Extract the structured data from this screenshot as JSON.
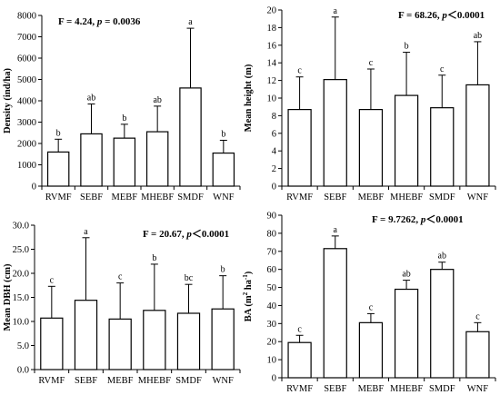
{
  "chart_data": [
    {
      "type": "bar",
      "ylabel": "Density (ind/ha)",
      "stat_text": [
        "F = 4.24, ",
        "p",
        " = 0.0036"
      ],
      "ylim": [
        0,
        8000
      ],
      "yticks": [
        0,
        1000,
        2000,
        3000,
        4000,
        5000,
        6000,
        7000,
        8000
      ],
      "ytick_labels": [
        "0",
        "1000",
        "2000",
        "3000",
        "4000",
        "5000",
        "6000",
        "7000",
        "8000"
      ],
      "categories": [
        "RVMF",
        "SEBF",
        "MEBF",
        "MHEBF",
        "SMDF",
        "WNF"
      ],
      "values": [
        1600,
        2450,
        2250,
        2550,
        4600,
        1550
      ],
      "errors": [
        600,
        1400,
        650,
        1200,
        2800,
        600
      ],
      "letters": [
        "b",
        "ab",
        "b",
        "ab",
        "a",
        "b"
      ]
    },
    {
      "type": "bar",
      "ylabel": "Mean height (m)",
      "stat_text": [
        "F = 68.26, ",
        "p",
        "＜0.0001"
      ],
      "ylim": [
        0,
        20
      ],
      "yticks": [
        0,
        2,
        4,
        6,
        8,
        10,
        12,
        14,
        16,
        18,
        20
      ],
      "ytick_labels": [
        "0",
        "2",
        "4",
        "6",
        "8",
        "10",
        "12",
        "14",
        "16",
        "18",
        "20"
      ],
      "categories": [
        "RVMF",
        "SEBF",
        "MEBF",
        "MHEBF",
        "SMDF",
        "WNF"
      ],
      "values": [
        8.7,
        12.1,
        8.7,
        10.3,
        8.9,
        11.5
      ],
      "errors": [
        3.7,
        7.1,
        4.6,
        4.9,
        3.7,
        4.9
      ],
      "letters": [
        "c",
        "a",
        "c",
        "b",
        "c",
        "ab"
      ]
    },
    {
      "type": "bar",
      "ylabel": "Mean DBH (cm)",
      "stat_text": [
        "F = 20.67, ",
        "p",
        "＜0.0001"
      ],
      "ylim": [
        0,
        30
      ],
      "yticks": [
        0,
        5,
        10,
        15,
        20,
        25,
        30
      ],
      "ytick_labels": [
        "0.0",
        "5.0",
        "10.0",
        "15.0",
        "20.0",
        "25.0",
        "30.0"
      ],
      "categories": [
        "RVMF",
        "SEBF",
        "MEBF",
        "MHEBF",
        "SMDF",
        "WNF"
      ],
      "values": [
        10.7,
        14.4,
        10.5,
        12.3,
        11.7,
        12.6
      ],
      "errors": [
        6.6,
        13.0,
        7.5,
        9.6,
        6.0,
        6.9
      ],
      "letters": [
        "c",
        "a",
        "c",
        "b",
        "bc",
        "b"
      ]
    },
    {
      "type": "bar",
      "ylabel_parts": [
        "BA (m",
        "2",
        " ha",
        "-1",
        ")"
      ],
      "stat_text": [
        "F = 9.7262, ",
        "p",
        "＜0.0001"
      ],
      "ylim": [
        0,
        90
      ],
      "yticks": [
        0,
        10,
        20,
        30,
        40,
        50,
        60,
        70,
        80,
        90
      ],
      "ytick_labels": [
        "0",
        "10",
        "20",
        "30",
        "40",
        "50",
        "60",
        "70",
        "80",
        "90"
      ],
      "categories": [
        "RVMF",
        "SEBF",
        "MEBF",
        "MHEBF",
        "SMDF",
        "WNF"
      ],
      "values": [
        19.5,
        71.5,
        30.5,
        49,
        60,
        25.5
      ],
      "errors": [
        4,
        7,
        5,
        5,
        4,
        5
      ],
      "letters": [
        "c",
        "a",
        "c",
        "ab",
        "ab",
        "c"
      ]
    }
  ]
}
